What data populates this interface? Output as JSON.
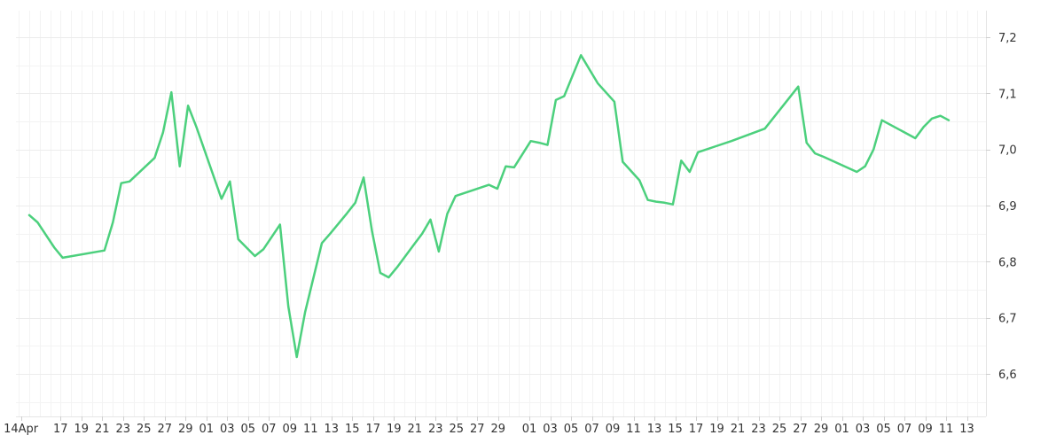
{
  "chart_data": {
    "type": "line",
    "xlabel": "",
    "ylabel": "",
    "title": "",
    "grid": true,
    "legend": "none",
    "line_color": "#4cd07d",
    "x_axis": {
      "tick_labels": [
        "14Apr",
        "17",
        "19",
        "21",
        "23",
        "25",
        "27",
        "29",
        "01",
        "03",
        "05",
        "07",
        "09",
        "11",
        "13",
        "15",
        "17",
        "19",
        "21",
        "23",
        "25",
        "27",
        "29",
        "01",
        "03",
        "05",
        "07",
        "09",
        "11",
        "13",
        "15",
        "17",
        "19",
        "21",
        "23",
        "25",
        "27",
        "29",
        "01",
        "03",
        "05",
        "07",
        "09",
        "11",
        "13"
      ]
    },
    "y_axis": {
      "ylim": [
        6.53,
        7.25
      ],
      "ticks": [
        6.6,
        6.7,
        6.8,
        6.9,
        7.0,
        7.1,
        7.2
      ],
      "tick_labels": [
        "6,6",
        "6,7",
        "6,8",
        "6,9",
        "7,0",
        "7,1",
        "7,2"
      ],
      "position": "right"
    },
    "series": [
      {
        "x": [
          0,
          1,
          3,
          4,
          9,
          10,
          11,
          12,
          15,
          16,
          17,
          18,
          19,
          20,
          23,
          24,
          25,
          27,
          28,
          30,
          31,
          32,
          33,
          35,
          36,
          37,
          38,
          39,
          40,
          41,
          42,
          43,
          44,
          46,
          47,
          48,
          49,
          50,
          51,
          52,
          53,
          55,
          56,
          57,
          58,
          60,
          61,
          62,
          63,
          64,
          66,
          68,
          70,
          71,
          73,
          74,
          75,
          76,
          77,
          78,
          79,
          80,
          81,
          82,
          84,
          88,
          92,
          93,
          94,
          95,
          99,
          100,
          101,
          102,
          106,
          107,
          108,
          109,
          110
        ],
        "y": [
          6.883,
          6.87,
          6.825,
          6.807,
          6.82,
          6.87,
          6.94,
          6.943,
          6.985,
          7.03,
          7.102,
          6.97,
          7.078,
          7.04,
          6.912,
          6.943,
          6.84,
          6.81,
          6.822,
          6.866,
          6.72,
          6.63,
          6.71,
          6.833,
          6.85,
          6.868,
          6.886,
          6.905,
          6.95,
          6.855,
          6.78,
          6.772,
          6.79,
          6.83,
          6.85,
          6.875,
          6.818,
          6.885,
          6.917,
          6.922,
          6.927,
          6.937,
          6.93,
          6.97,
          6.968,
          7.015,
          7.012,
          7.008,
          7.088,
          7.095,
          7.168,
          7.118,
          7.085,
          6.978,
          6.945,
          6.91,
          6.907,
          6.905,
          6.902,
          6.98,
          6.96,
          6.995,
          7.0,
          7.005,
          7.015,
          7.037,
          7.112,
          7.012,
          6.993,
          6.987,
          6.96,
          6.97,
          7.0,
          7.052,
          7.02,
          7.04,
          7.055,
          7.06,
          7.052
        ]
      }
    ]
  }
}
